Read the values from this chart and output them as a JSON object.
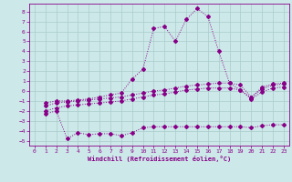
{
  "xlabel": "Windchill (Refroidissement éolien,°C)",
  "ylabel": "",
  "background_color": "#cce8e8",
  "grid_color": "#aacccc",
  "line_color": "#880088",
  "xlim": [
    -0.5,
    23.5
  ],
  "ylim": [
    -5.5,
    8.8
  ],
  "xticks": [
    0,
    1,
    2,
    3,
    4,
    5,
    6,
    7,
    8,
    9,
    10,
    11,
    12,
    13,
    14,
    15,
    16,
    17,
    18,
    19,
    20,
    21,
    22,
    23
  ],
  "yticks": [
    -5,
    -4,
    -3,
    -2,
    -1,
    0,
    1,
    2,
    3,
    4,
    5,
    6,
    7,
    8
  ],
  "series": [
    {
      "x": [
        1,
        2,
        3,
        4,
        5,
        6,
        7,
        8,
        9,
        10,
        11,
        12,
        13,
        14,
        15,
        16,
        17,
        18,
        19,
        20,
        21,
        22,
        23
      ],
      "y": [
        -1.2,
        -1.0,
        -1.0,
        -0.9,
        -0.8,
        -0.6,
        -0.4,
        -0.2,
        1.2,
        2.2,
        6.3,
        6.5,
        5.0,
        7.2,
        8.3,
        7.5,
        4.0,
        0.8,
        0.1,
        -0.7,
        0.4,
        0.7,
        0.8
      ]
    },
    {
      "x": [
        1,
        2,
        3,
        4,
        5,
        6,
        7,
        8,
        9,
        10,
        11,
        12,
        13,
        14,
        15,
        16,
        17,
        18,
        19,
        20,
        21,
        22,
        23
      ],
      "y": [
        -1.5,
        -1.2,
        -1.1,
        -1.0,
        -0.9,
        -0.8,
        -0.7,
        -0.6,
        -0.4,
        -0.2,
        0.0,
        0.1,
        0.3,
        0.5,
        0.6,
        0.7,
        0.8,
        0.8,
        0.6,
        -0.6,
        0.2,
        0.6,
        0.7
      ]
    },
    {
      "x": [
        1,
        2,
        3,
        4,
        5,
        6,
        7,
        8,
        9,
        10,
        11,
        12,
        13,
        14,
        15,
        16,
        17,
        18,
        19,
        20,
        21,
        22,
        23
      ],
      "y": [
        -2.0,
        -1.7,
        -1.5,
        -1.4,
        -1.3,
        -1.2,
        -1.1,
        -1.0,
        -0.8,
        -0.6,
        -0.4,
        -0.3,
        -0.1,
        0.1,
        0.2,
        0.3,
        0.3,
        0.3,
        0.1,
        -0.8,
        -0.1,
        0.3,
        0.4
      ]
    },
    {
      "x": [
        1,
        2,
        3,
        4,
        5,
        6,
        7,
        8,
        9,
        10,
        11,
        12,
        13,
        14,
        15,
        16,
        17,
        18,
        19,
        20,
        21,
        22,
        23
      ],
      "y": [
        -2.3,
        -2.0,
        -4.8,
        -4.2,
        -4.4,
        -4.3,
        -4.3,
        -4.5,
        -4.2,
        -3.7,
        -3.6,
        -3.6,
        -3.6,
        -3.6,
        -3.6,
        -3.6,
        -3.6,
        -3.6,
        -3.6,
        -3.7,
        -3.5,
        -3.4,
        -3.4
      ]
    }
  ]
}
